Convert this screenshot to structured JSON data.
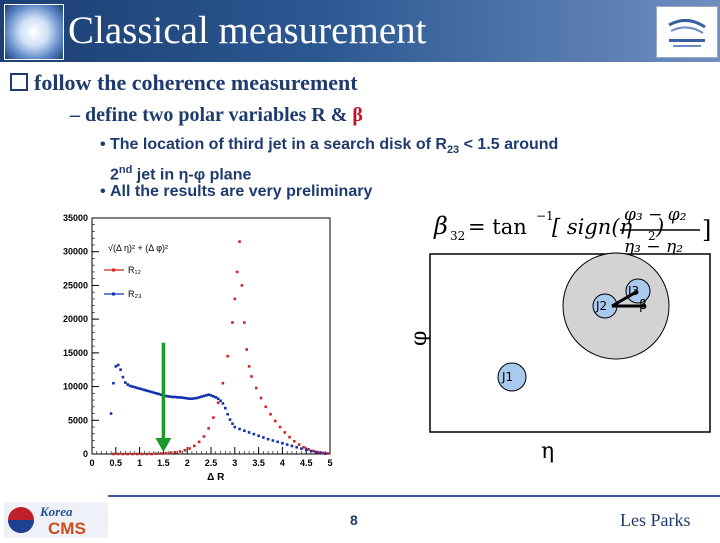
{
  "title": "Classical measurement",
  "bullet": "follow the coherence measurement",
  "sub_bullet_prefix": "– define two polar variables R & ",
  "sub_bullet_beta": "β",
  "points": {
    "p1_part1": "The location of third  jet in a search disk of R",
    "p1_sub": "23",
    "p1_part2": " < 1.5 around",
    "p1_line2_sup_base": "2",
    "p1_sup": "nd",
    "p1_line2": " jet in η-φ plane",
    "p2": "All the results are very preliminary"
  },
  "chart_data": {
    "type": "scatter",
    "legend_formula": "√(Δ η)² + (Δ φ)²",
    "xlabel": "Δ R",
    "ylabel": "",
    "xlim": [
      0,
      5
    ],
    "ylim": [
      0,
      35000
    ],
    "xtick_labels": [
      "0",
      "0.5",
      "1",
      "1.5",
      "2",
      "2.5",
      "3",
      "3.5",
      "4",
      "4.5",
      "5"
    ],
    "ytick_labels": [
      "0",
      "5000",
      "10000",
      "15000",
      "20000",
      "25000",
      "30000",
      "35000"
    ],
    "legend_placement": "top-left",
    "arrow_x": 1.5,
    "series": [
      {
        "name": "R₁₂",
        "color": "#d42020",
        "x": [
          0.45,
          0.55,
          0.65,
          0.75,
          0.85,
          0.95,
          1.05,
          1.15,
          1.25,
          1.35,
          1.45,
          1.55,
          1.65,
          1.75,
          1.85,
          1.95,
          2.05,
          2.15,
          2.25,
          2.35,
          2.45,
          2.55,
          2.65,
          2.75,
          2.85,
          2.95,
          3.0,
          3.05,
          3.1,
          3.15,
          3.2,
          3.25,
          3.3,
          3.35,
          3.45,
          3.55,
          3.65,
          3.75,
          3.85,
          3.95,
          4.05,
          4.15,
          4.25,
          4.35,
          4.45,
          4.55,
          4.65,
          4.75,
          4.85,
          4.95
        ],
        "y": [
          0,
          0,
          0,
          0,
          0,
          0,
          0,
          0,
          0,
          50,
          80,
          120,
          180,
          260,
          380,
          560,
          820,
          1200,
          1800,
          2600,
          3800,
          5400,
          7600,
          10500,
          14500,
          19500,
          23000,
          27000,
          31500,
          25000,
          19500,
          15500,
          13000,
          11500,
          9800,
          8300,
          7000,
          5900,
          4900,
          4000,
          3200,
          2500,
          1900,
          1400,
          1000,
          700,
          450,
          280,
          160,
          80
        ]
      },
      {
        "name": "R₂₃",
        "color": "#1030b0",
        "x": [
          0.4,
          0.45,
          0.5,
          0.55,
          0.6,
          0.65,
          0.7,
          0.75,
          0.8,
          0.85,
          0.9,
          0.95,
          1.0,
          1.05,
          1.1,
          1.15,
          1.2,
          1.25,
          1.3,
          1.35,
          1.4,
          1.45,
          1.5,
          1.55,
          1.6,
          1.65,
          1.7,
          1.75,
          1.8,
          1.85,
          1.9,
          1.95,
          2.0,
          2.05,
          2.1,
          2.15,
          2.2,
          2.25,
          2.3,
          2.35,
          2.4,
          2.45,
          2.5,
          2.55,
          2.6,
          2.65,
          2.7,
          2.75,
          2.8,
          2.85,
          2.9,
          2.95,
          3.0,
          3.1,
          3.2,
          3.3,
          3.4,
          3.5,
          3.6,
          3.7,
          3.8,
          3.9,
          4.0,
          4.1,
          4.2,
          4.3,
          4.4,
          4.5,
          4.6,
          4.7,
          4.8,
          4.9
        ],
        "y": [
          6000,
          10500,
          13000,
          13200,
          12500,
          11400,
          10600,
          10300,
          10100,
          10000,
          9900,
          9800,
          9700,
          9600,
          9500,
          9400,
          9300,
          9200,
          9100,
          9000,
          8900,
          8800,
          8700,
          8600,
          8550,
          8500,
          8450,
          8450,
          8400,
          8400,
          8350,
          8300,
          8250,
          8200,
          8200,
          8250,
          8300,
          8400,
          8500,
          8600,
          8700,
          8800,
          8700,
          8550,
          8400,
          8200,
          7900,
          7500,
          6800,
          5900,
          5100,
          4500,
          4000,
          3700,
          3450,
          3200,
          2950,
          2700,
          2450,
          2200,
          2000,
          1800,
          1600,
          1400,
          1200,
          1000,
          800,
          600,
          450,
          300,
          150,
          50
        ]
      }
    ]
  },
  "formula": {
    "lhs": "β",
    "lhs_sub": "32",
    "eq": " = tan",
    "sup": "−1",
    "sign": "[ sign(η",
    "sign_sub": "2",
    "sign_end": ")",
    "num": "φ₃ − φ₂",
    "den": "η₃ − η₂",
    "close": "]"
  },
  "diagram": {
    "phi_label": "φ",
    "eta_label": "η",
    "j1": "J1",
    "j2": "J2",
    "j3": "J3",
    "beta": "β"
  },
  "footer": {
    "logo_top": "Korea",
    "logo_bottom": "CMS",
    "page": "8",
    "author": "Les Parks"
  },
  "colors": {
    "title_bar": "#2c5892",
    "text_blue": "#1f3b6e",
    "accent_red": "#c0102a",
    "arrow_green": "#1a9a2a",
    "circle_fill": "#d3d3d3",
    "jet_fill": "#a9c9ef"
  }
}
